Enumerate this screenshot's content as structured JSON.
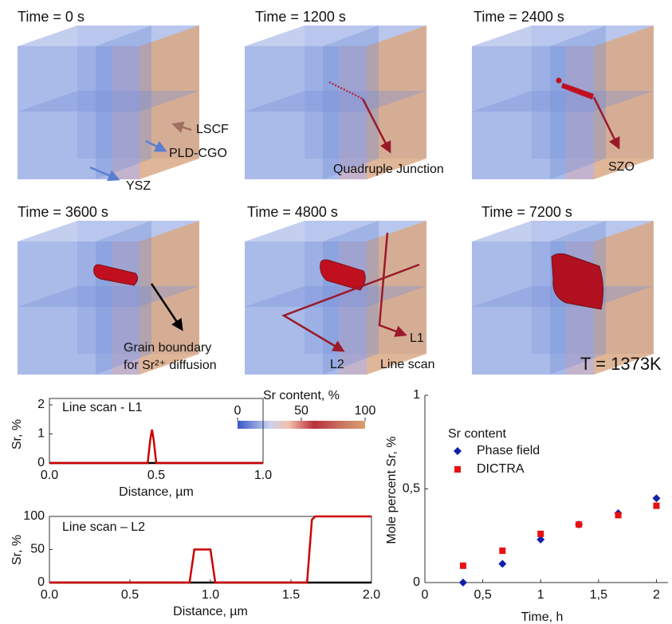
{
  "panels": [
    {
      "time": "Time = 0 s",
      "labels": [
        "LSCF",
        "PLD-CGO",
        "YSZ"
      ]
    },
    {
      "time": "Time = 1200 s",
      "labels": [
        "Quadruple Junction"
      ]
    },
    {
      "time": "Time = 2400 s",
      "labels": [
        "SZO"
      ]
    },
    {
      "time": "Time = 3600 s",
      "labels": [
        "Grain boundary",
        "for Sr²⁺ diffusion"
      ]
    },
    {
      "time": "Time = 4800 s",
      "labels": [
        "L1",
        "L2",
        "Line scan"
      ]
    },
    {
      "time": "Time = 7200 s",
      "labels": [
        "T = 1373K"
      ]
    }
  ],
  "colorbar": {
    "title": "Sr content, %",
    "lim": [
      0,
      100
    ],
    "ticks": [
      0,
      50,
      100
    ]
  },
  "chart_data": [
    {
      "type": "line",
      "title": "Line scan - L1",
      "x_label": "Distance, µm",
      "y_label": "Sr, %",
      "xlim": [
        0,
        1
      ],
      "ylim": [
        0,
        2
      ],
      "xticks": [
        {
          "value": 0,
          "label": "0.0"
        },
        {
          "value": 0.5,
          "label": "0.5"
        },
        {
          "value": 1,
          "label": "1.0"
        }
      ],
      "yticks": [
        0,
        1,
        2
      ],
      "series": [
        {
          "color": "#000000",
          "x": [
            0,
            1
          ],
          "values": [
            0,
            0
          ]
        },
        {
          "color": "#cc0000",
          "x": [
            0,
            0.46,
            0.472,
            0.48,
            0.488,
            0.5,
            1
          ],
          "values": [
            0,
            0,
            0.8,
            1.15,
            0.8,
            0,
            0
          ]
        }
      ]
    },
    {
      "type": "line",
      "title": "Line scan – L2",
      "x_label": "Distance, µm",
      "y_label": "Sr, %",
      "xlim": [
        0,
        2
      ],
      "ylim": [
        0,
        100
      ],
      "xticks": [
        {
          "value": 0,
          "label": "0.0"
        },
        {
          "value": 0.5,
          "label": "0.5"
        },
        {
          "value": 1,
          "label": "1.0"
        },
        {
          "value": 1.5,
          "label": "1.5"
        },
        {
          "value": 2,
          "label": "2.0"
        }
      ],
      "yticks": [
        0,
        50,
        100
      ],
      "series": [
        {
          "color": "#000000",
          "x": [
            0,
            2
          ],
          "values": [
            0,
            0
          ]
        },
        {
          "color": "#cc0000",
          "x": [
            0,
            0.87,
            0.9,
            1.0,
            1.03,
            1.6,
            1.63,
            1.65,
            2
          ],
          "values": [
            0,
            0,
            50,
            50,
            0,
            0,
            95,
            100,
            100
          ]
        }
      ]
    },
    {
      "type": "scatter",
      "x_label": "Time, h",
      "y_label": "Mole percent Sr, %",
      "legend_title": "Sr content",
      "xlim": [
        0,
        2.1
      ],
      "ylim": [
        0,
        1
      ],
      "xticks": [
        0,
        {
          "value": 0.5,
          "label": "0,5"
        },
        1,
        {
          "value": 1.5,
          "label": "1,5"
        },
        2
      ],
      "yticks": [
        0,
        {
          "value": 0.5,
          "label": "0,5"
        },
        1
      ],
      "series": [
        {
          "name": "Phase field",
          "color": "#1020a8",
          "marker": "diamond",
          "x": [
            0.33,
            0.67,
            1,
            1.33,
            1.67,
            2
          ],
          "values": [
            0,
            0.1,
            0.23,
            0.31,
            0.37,
            0.45
          ]
        },
        {
          "name": "DICTRA",
          "color": "#e81010",
          "marker": "square",
          "x": [
            0.33,
            0.67,
            1,
            1.33,
            1.67,
            2
          ],
          "values": [
            0.09,
            0.17,
            0.26,
            0.31,
            0.36,
            0.41
          ]
        }
      ]
    }
  ]
}
